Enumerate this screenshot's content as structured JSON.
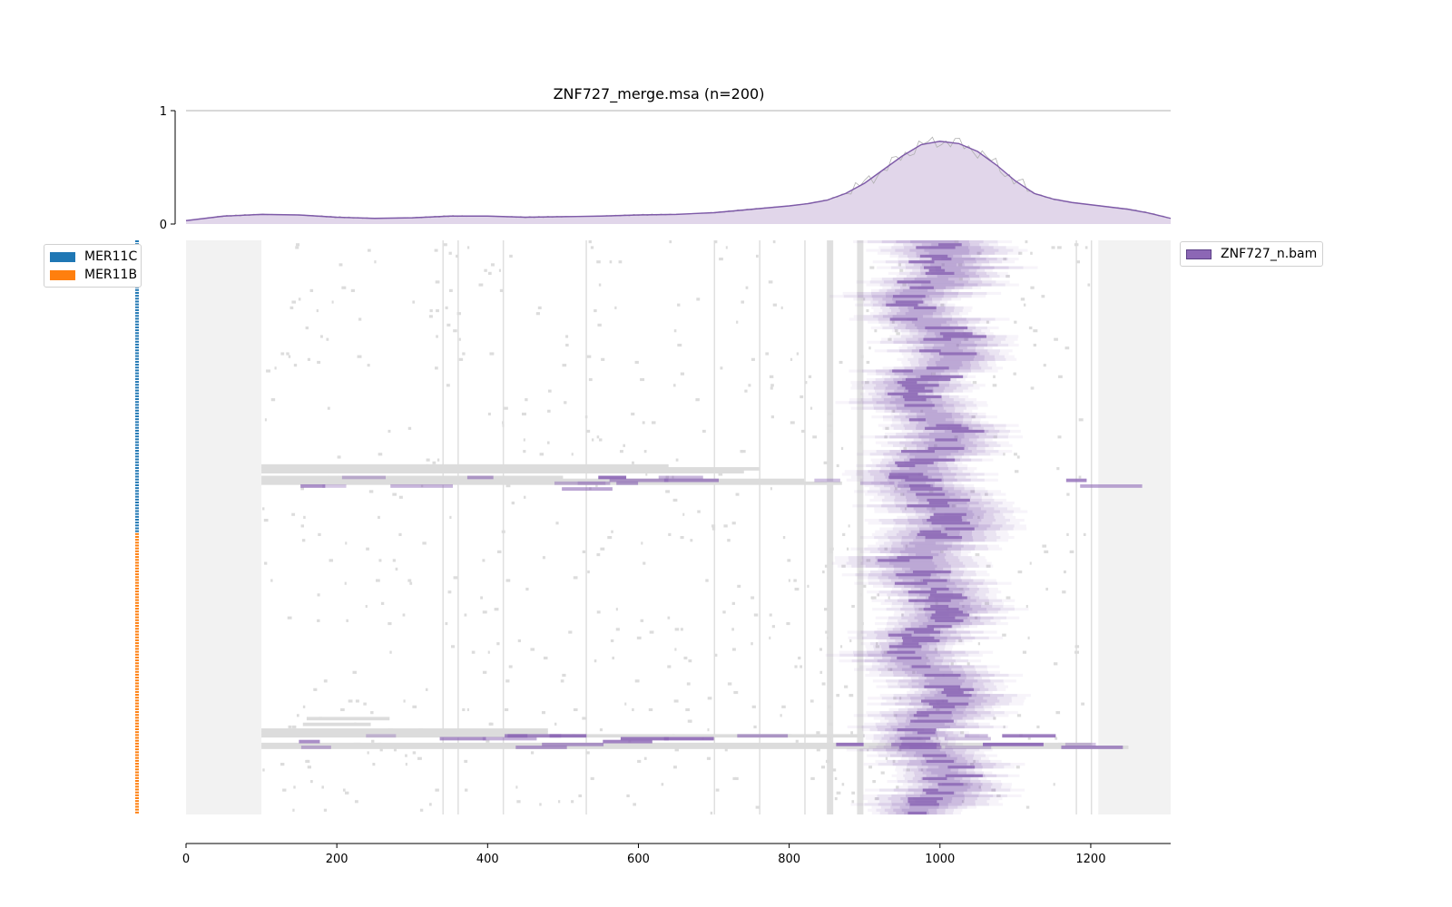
{
  "chart_data": {
    "type": "heatmap",
    "title": "ZNF727_merge.msa (n=200)",
    "n_sequences": 200,
    "alignment_length": 1306,
    "xlim": [
      0,
      1306
    ],
    "xticks": [
      0,
      200,
      400,
      600,
      800,
      1000,
      1200
    ],
    "xtick_labels": [
      "0",
      "200",
      "400",
      "600",
      "800",
      "1000",
      "1200"
    ],
    "coverage": {
      "type": "area",
      "ylim": [
        0,
        1
      ],
      "yticks": [
        0,
        1
      ],
      "ytick_labels": [
        "0",
        "1"
      ],
      "x": [
        0,
        50,
        100,
        150,
        200,
        250,
        300,
        350,
        400,
        450,
        500,
        550,
        600,
        650,
        700,
        750,
        800,
        825,
        850,
        875,
        900,
        925,
        950,
        975,
        1000,
        1025,
        1050,
        1075,
        1100,
        1125,
        1150,
        1175,
        1200,
        1225,
        1250,
        1275,
        1306
      ],
      "y": [
        0.03,
        0.07,
        0.085,
        0.08,
        0.06,
        0.05,
        0.055,
        0.07,
        0.07,
        0.06,
        0.065,
        0.07,
        0.08,
        0.085,
        0.1,
        0.13,
        0.16,
        0.18,
        0.21,
        0.27,
        0.36,
        0.48,
        0.6,
        0.7,
        0.73,
        0.71,
        0.64,
        0.52,
        0.38,
        0.27,
        0.22,
        0.19,
        0.17,
        0.15,
        0.13,
        0.1,
        0.05
      ]
    },
    "groups": [
      {
        "name": "MER11C",
        "rows": [
          0,
          102
        ],
        "color": "#1f77b4"
      },
      {
        "name": "MER11B",
        "rows": [
          102,
          200
        ],
        "color": "#ff7f0e"
      }
    ],
    "signal": {
      "name": "ZNF727_n.bam",
      "color": "#8c67b5",
      "center": 990,
      "width": 90,
      "region": [
        900,
        1100
      ]
    },
    "flank_regions": [
      [
        0,
        100
      ],
      [
        1210,
        1306
      ]
    ],
    "conserved_columns": [
      340,
      360,
      420,
      530,
      700,
      760,
      820,
      850,
      890,
      1180,
      1200
    ]
  },
  "colors": {
    "gap": "#dcdcdc",
    "flank": "#f2f2f2",
    "signal_strong": "#8c67b5",
    "signal_fill": "#e1d6ea",
    "coverage_line": "#7e5aa8",
    "raw_line": "#b0b0b0",
    "axis": "#000000"
  }
}
